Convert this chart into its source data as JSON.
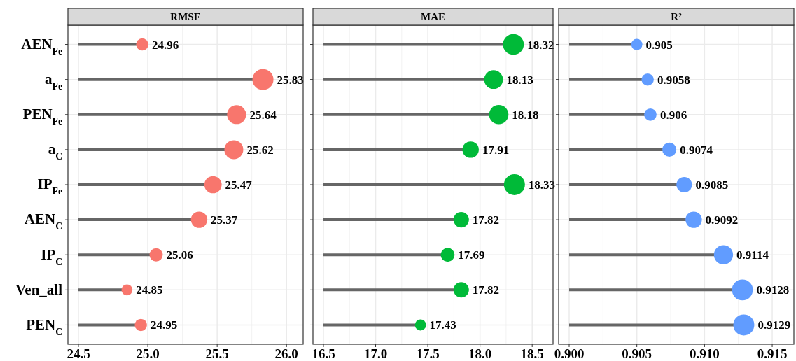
{
  "chart_data": [
    {
      "type": "lollipop",
      "orientation": "horizontal",
      "title": "RMSE",
      "categories": [
        "AEN$_{Fe}$",
        "a$_{Fe}$",
        "PEN$_{Fe}$",
        "a$_{C}$",
        "IP$_{Fe}$",
        "AEN$_{C}$",
        "IP$_{C}$",
        "Ven_all",
        "PEN$_{C}$"
      ],
      "series": [
        {
          "color": "#f8766d",
          "values": [
            24.96,
            25.83,
            25.64,
            25.62,
            25.47,
            25.37,
            25.06,
            24.85,
            24.95
          ],
          "sizes": [
            0.34,
            1,
            0.82,
            0.81,
            0.68,
            0.61,
            0.4,
            0.28,
            0.34
          ]
        }
      ],
      "xlim": [
        24.5,
        26.12
      ],
      "xticks": [
        {
          "value": 24.5,
          "label": "24.5"
        },
        {
          "value": 25.0,
          "label": "25.0"
        },
        {
          "value": 25.5,
          "label": "25.5"
        },
        {
          "value": 26.0,
          "label": "26.0"
        }
      ],
      "grid": true,
      "data_labels": true
    },
    {
      "type": "lollipop",
      "orientation": "horizontal",
      "title": "MAE",
      "categories": [
        null,
        null,
        null,
        null,
        null,
        null,
        null,
        null,
        null
      ],
      "series": [
        {
          "color": "#00ba38",
          "values": [
            18.32,
            18.13,
            18.18,
            17.91,
            18.33,
            17.82,
            17.69,
            17.82,
            17.43
          ],
          "sizes": [
            0.99,
            0.8,
            0.85,
            0.61,
            1,
            0.54,
            0.44,
            0.54,
            0.28
          ]
        }
      ],
      "xlim": [
        16.5,
        18.7
      ],
      "xticks": [
        {
          "value": 16.5,
          "label": "16.5"
        },
        {
          "value": 17.0,
          "label": "17.0"
        },
        {
          "value": 17.5,
          "label": "17.5"
        },
        {
          "value": 18.0,
          "label": "18.0"
        },
        {
          "value": 18.5,
          "label": "18.5"
        }
      ],
      "grid": true,
      "data_labels": true,
      "tick_labels": "x"
    },
    {
      "type": "lollipop",
      "orientation": "horizontal",
      "title": "R²",
      "categories": [
        null,
        null,
        null,
        null,
        null,
        null,
        null,
        null,
        null
      ],
      "series": [
        {
          "color": "#619cff",
          "values": [
            0.905,
            0.9058,
            0.906,
            0.9074,
            0.9085,
            0.9092,
            0.9114,
            0.9128,
            0.9129
          ],
          "sizes": [
            0.28,
            0.34,
            0.35,
            0.45,
            0.55,
            0.61,
            0.83,
            0.99,
            1
          ]
        }
      ],
      "xlim": [
        0.9,
        0.9166
      ],
      "xticks": [
        {
          "value": 0.9,
          "label": "0.900"
        },
        {
          "value": 0.905,
          "label": "0.905"
        },
        {
          "value": 0.91,
          "label": "0.910"
        },
        {
          "value": 0.915,
          "label": "0.915"
        }
      ],
      "grid": true,
      "data_labels": true,
      "tick_labels": "x"
    }
  ]
}
